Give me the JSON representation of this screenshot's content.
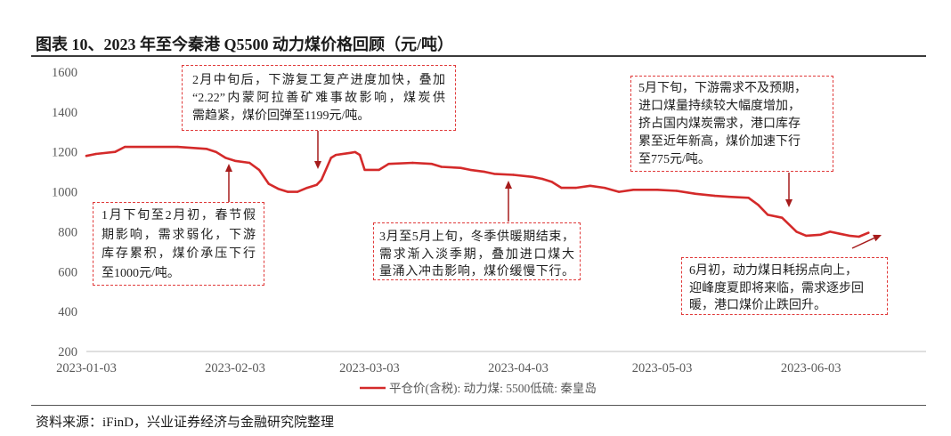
{
  "source": "资料来源：iFinD，兴业证券经济与金融研究院整理",
  "colors": {
    "series": "#d42a2a",
    "annotation_border": "#e03a3a",
    "arrow": "#a61c1c",
    "axis": "#bfbfbf",
    "tick_text": "#595959"
  },
  "chart_data": {
    "type": "line",
    "title": "图表 10、2023 年至今秦港 Q5500 动力煤价格回顾（元/吨）",
    "xlim": [
      "2023-01-03",
      "2023-06-27"
    ],
    "ylim": [
      200,
      1600
    ],
    "xticks": [
      "2023-01-03",
      "2023-02-03",
      "2023-03-03",
      "2023-04-03",
      "2023-05-03",
      "2023-06-03"
    ],
    "yticks": [
      1600,
      1400,
      1200,
      1000,
      800,
      600,
      400,
      200
    ],
    "grid": false,
    "legend_position": "bottom",
    "series": [
      {
        "name": "平仓价(含税): 动力煤: 5500低硫: 秦皇岛",
        "points": [
          [
            "2023-01-03",
            1180
          ],
          [
            "2023-01-05",
            1190
          ],
          [
            "2023-01-09",
            1200
          ],
          [
            "2023-01-11",
            1225
          ],
          [
            "2023-01-22",
            1225
          ],
          [
            "2023-01-28",
            1215
          ],
          [
            "2023-01-30",
            1200
          ],
          [
            "2023-02-01",
            1170
          ],
          [
            "2023-02-03",
            1155
          ],
          [
            "2023-02-06",
            1145
          ],
          [
            "2023-02-08",
            1110
          ],
          [
            "2023-02-10",
            1040
          ],
          [
            "2023-02-12",
            1015
          ],
          [
            "2023-02-14",
            1000
          ],
          [
            "2023-02-16",
            1000
          ],
          [
            "2023-02-18",
            1020
          ],
          [
            "2023-02-20",
            1035
          ],
          [
            "2023-02-21",
            1060
          ],
          [
            "2023-02-23",
            1170
          ],
          [
            "2023-02-24",
            1185
          ],
          [
            "2023-02-27",
            1195
          ],
          [
            "2023-02-28",
            1199
          ],
          [
            "2023-03-01",
            1185
          ],
          [
            "2023-03-02",
            1110
          ],
          [
            "2023-03-05",
            1110
          ],
          [
            "2023-03-07",
            1140
          ],
          [
            "2023-03-12",
            1145
          ],
          [
            "2023-03-16",
            1140
          ],
          [
            "2023-03-18",
            1125
          ],
          [
            "2023-03-22",
            1120
          ],
          [
            "2023-03-24",
            1110
          ],
          [
            "2023-03-27",
            1100
          ],
          [
            "2023-03-29",
            1090
          ],
          [
            "2023-04-02",
            1085
          ],
          [
            "2023-04-06",
            1075
          ],
          [
            "2023-04-08",
            1065
          ],
          [
            "2023-04-10",
            1050
          ],
          [
            "2023-04-12",
            1020
          ],
          [
            "2023-04-15",
            1020
          ],
          [
            "2023-04-18",
            1030
          ],
          [
            "2023-04-21",
            1020
          ],
          [
            "2023-04-24",
            1000
          ],
          [
            "2023-04-27",
            1010
          ],
          [
            "2023-05-02",
            1010
          ],
          [
            "2023-05-06",
            1005
          ],
          [
            "2023-05-10",
            990
          ],
          [
            "2023-05-14",
            980
          ],
          [
            "2023-05-17",
            975
          ],
          [
            "2023-05-21",
            970
          ],
          [
            "2023-05-23",
            935
          ],
          [
            "2023-05-25",
            885
          ],
          [
            "2023-05-28",
            870
          ],
          [
            "2023-05-31",
            800
          ],
          [
            "2023-06-02",
            780
          ],
          [
            "2023-06-05",
            785
          ],
          [
            "2023-06-07",
            800
          ],
          [
            "2023-06-09",
            790
          ],
          [
            "2023-06-11",
            780
          ],
          [
            "2023-06-13",
            775
          ],
          [
            "2023-06-15",
            795
          ]
        ]
      }
    ],
    "annotations": [
      {
        "lines": [
          "1月下旬至2月初，春节假",
          "期影响，需求弱化，下游",
          "库存累积，煤价承压下行",
          "至1000元/吨。"
        ]
      },
      {
        "lines": [
          "2月中旬后，下游复工复产进度加快，叠加",
          "“2.22”内蒙阿拉善矿难事故影响，煤炭供",
          "需趋紧，煤价回弹至1199元/吨。"
        ]
      },
      {
        "lines": [
          "3月至5月上旬，冬季供暖期结束，",
          "需求渐入淡季期，叠加进口煤大",
          "量涌入冲击影响，煤价缓慢下行。"
        ]
      },
      {
        "lines": [
          "5月下旬，下游需求不及预期，",
          "进口煤量持续较大幅度增加，",
          "挤占国内煤炭需求，港口库存",
          "累至近年新高，煤价加速下行",
          "至775元/吨。"
        ]
      },
      {
        "lines": [
          "6月初，动力煤日耗拐点向上，",
          "迎峰度夏即将来临，需求逐步回",
          "暖，港口煤价止跌回升。"
        ]
      }
    ]
  }
}
